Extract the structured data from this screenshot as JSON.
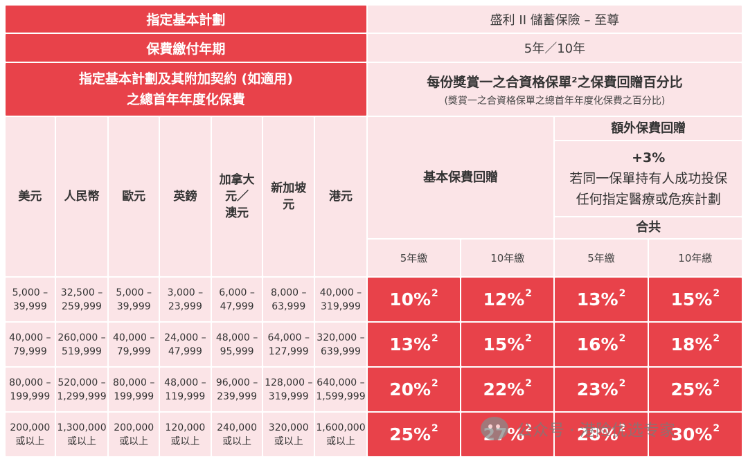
{
  "header": {
    "plan_label": "指定基本計劃",
    "plan_value": "盛利 II 儲蓄保險 – 至尊",
    "term_label": "保費繳付年期",
    "term_value": "5年／10年",
    "premium_label_line1": "指定基本計劃及其附加契約 (如適用)",
    "premium_label_line2": "之總首年年度化保費",
    "rebate_title": "每份獎賞一之合資格保單²之保費回贈百分比",
    "rebate_subtitle": "(獎賞一之合資格保單之總首年年度化保費之百分比)"
  },
  "currencies": [
    "美元",
    "人民幣",
    "歐元",
    "英鎊",
    "加拿大\n元／\n澳元",
    "新加坡\n元",
    "港元"
  ],
  "groups": {
    "basic": "基本保費回贈",
    "extra": "額外保費回贈",
    "extra_pct": "+3%",
    "extra_desc_line1": "若同一保單持有人成功投保",
    "extra_desc_line2": "任何指定醫療或危疾計劃",
    "total": "合共"
  },
  "year_labels": [
    "5年繳",
    "10年繳",
    "5年繳",
    "10年繳"
  ],
  "rows": [
    {
      "ranges": [
        "5,000 –\n39,999",
        "32,500 –\n259,999",
        "5,000 –\n39,999",
        "3,000 –\n23,999",
        "6,000 –\n47,999",
        "8,000 –\n63,999",
        "40,000 –\n319,999"
      ],
      "rates": [
        "10%",
        "12%",
        "13%",
        "15%"
      ]
    },
    {
      "ranges": [
        "40,000 –\n79,999",
        "260,000 –\n519,999",
        "40,000 –\n79,999",
        "24,000 –\n47,999",
        "48,000 –\n95,999",
        "64,000 –\n127,999",
        "320,000 –\n639,999"
      ],
      "rates": [
        "13%",
        "15%",
        "16%",
        "18%"
      ]
    },
    {
      "ranges": [
        "80,000 –\n199,999",
        "520,000 –\n1,299,999",
        "80,000 –\n199,999",
        "48,000 –\n119,999",
        "96,000 –\n239,999",
        "128,000 –\n319,999",
        "640,000 –\n1,599,999"
      ],
      "rates": [
        "20%",
        "22%",
        "23%",
        "25%"
      ]
    },
    {
      "ranges": [
        "200,000\n或以上",
        "1,300,000\n或以上",
        "200,000\n或以上",
        "120,000\n或以上",
        "240,000\n或以上",
        "320,000\n或以上",
        "1,600,000\n或以上"
      ],
      "rates": [
        "25%",
        "27%",
        "28%",
        "30%"
      ]
    }
  ],
  "footnote_marker": "2",
  "watermark": {
    "icon": "wechat-icon",
    "text": "公众号 · 港险优选专家"
  },
  "colors": {
    "header_red": "#e8424a",
    "light_pink": "#fbe4e7",
    "text_dark": "#333333"
  }
}
